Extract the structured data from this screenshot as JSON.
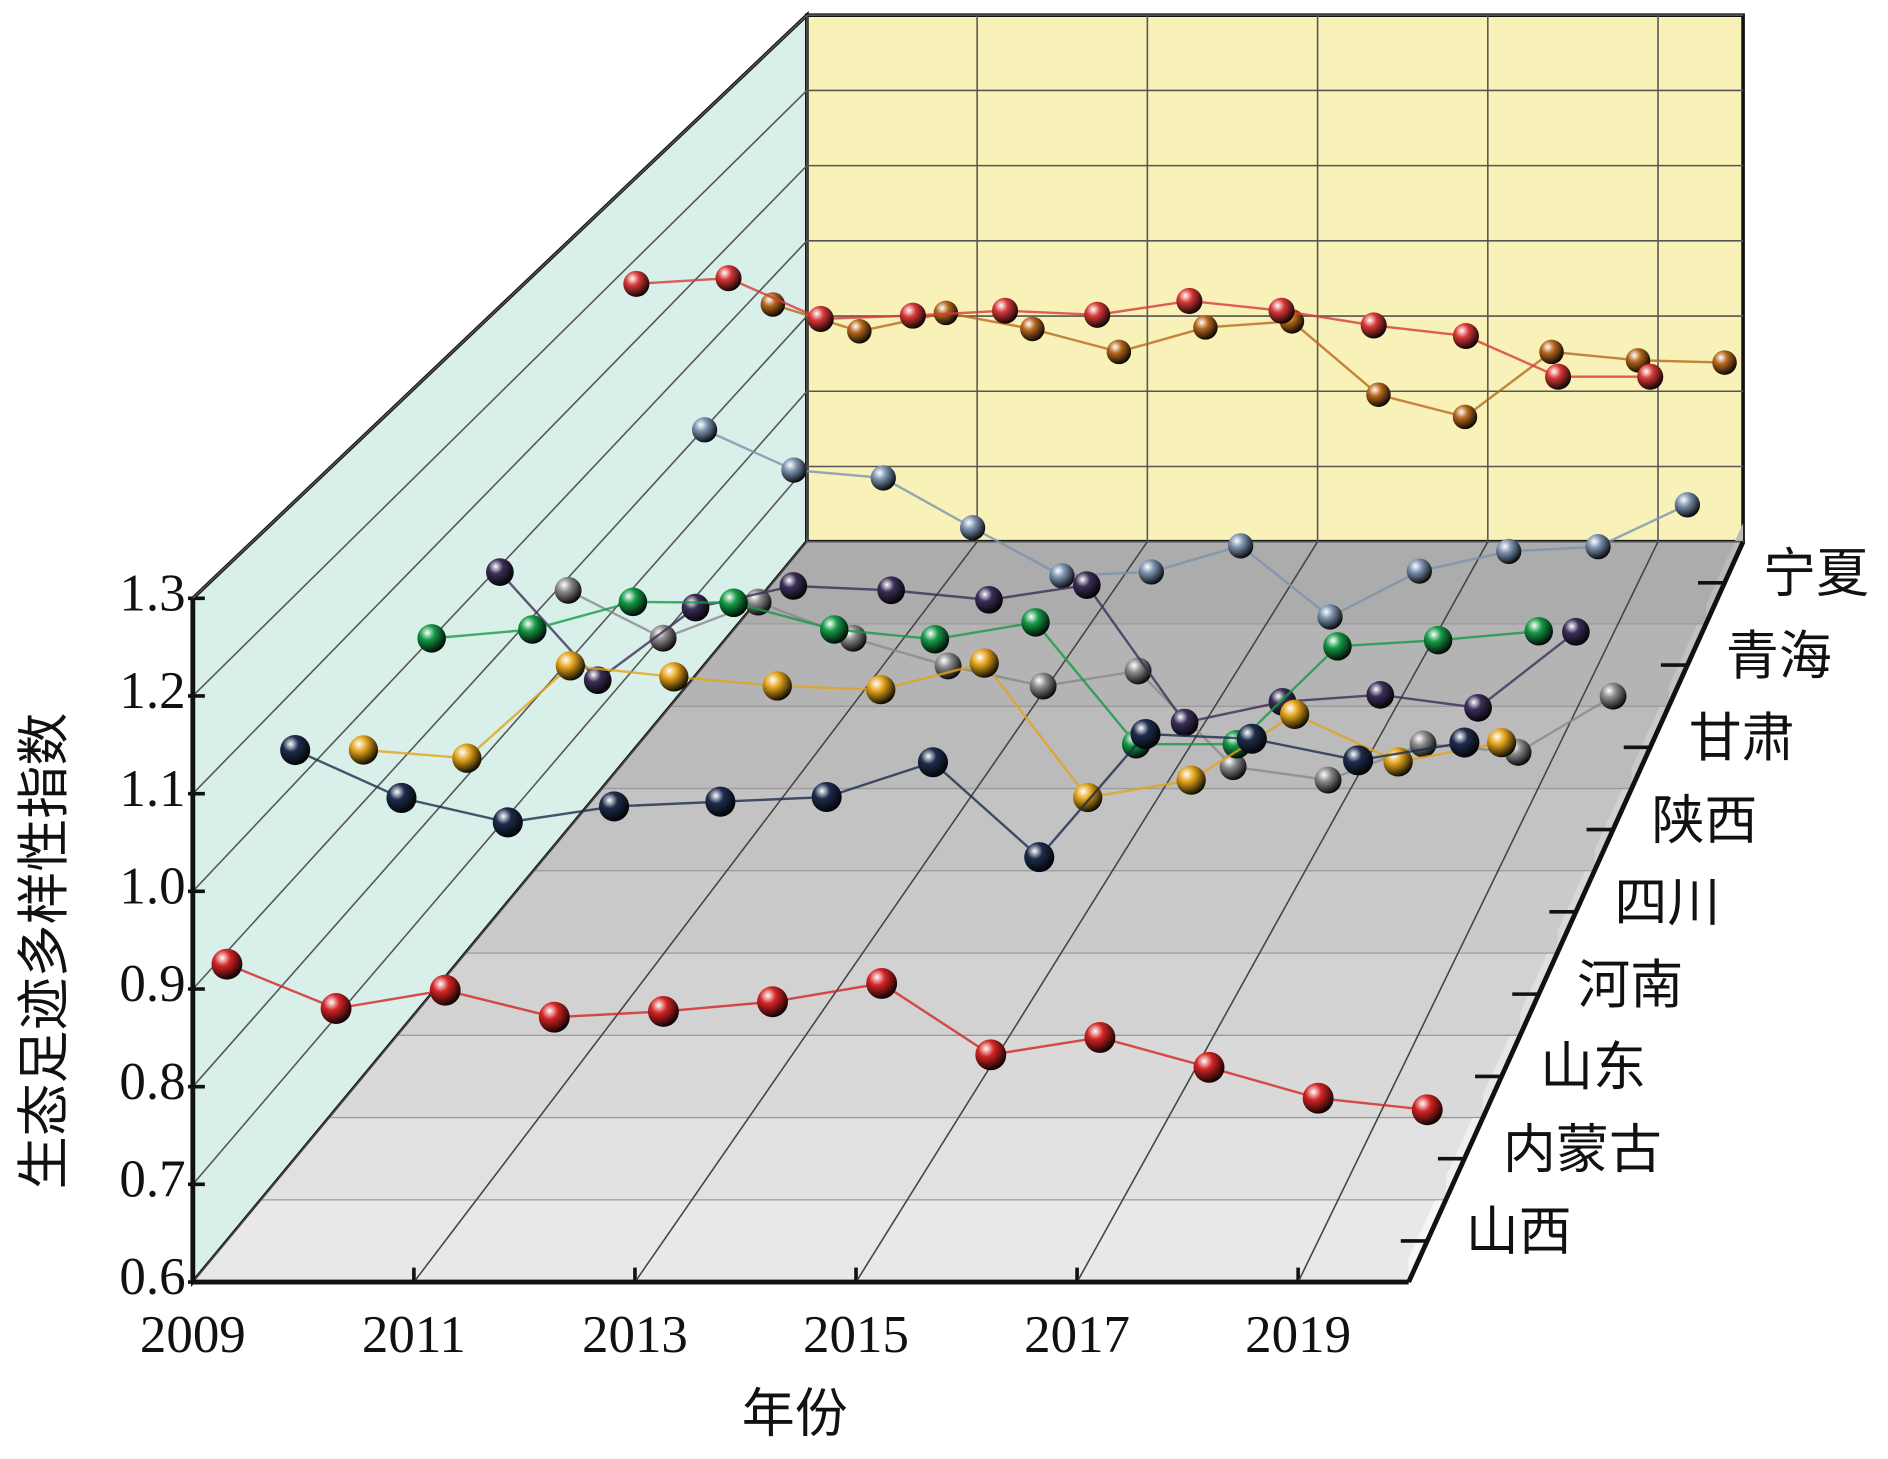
{
  "chart_data": {
    "type": "line3d",
    "xlabel": "年份",
    "ylabel": "生态足迹多样性指数",
    "x": [
      2009,
      2010,
      2011,
      2012,
      2013,
      2014,
      2015,
      2016,
      2017,
      2018,
      2019,
      2020
    ],
    "xlim": [
      2009,
      2020
    ],
    "xticks": [
      2009,
      2011,
      2013,
      2015,
      2017,
      2019
    ],
    "ylim": [
      0.6,
      1.3
    ],
    "yticks": [
      0.6,
      0.7,
      0.8,
      0.9,
      {
        "value": 1.0,
        "label": "1.0"
      },
      1.1,
      1.2,
      1.3
    ],
    "grid": true,
    "series": [
      {
        "name": "山西",
        "color": "#d42424",
        "values": [
          0.887,
          0.841,
          0.86,
          0.832,
          0.838,
          0.848,
          0.867,
          0.793,
          0.811,
          0.78,
          0.748,
          0.736
        ]
      },
      {
        "name": "内蒙古",
        "color": "#1e2c4c",
        "values": [
          1.035,
          0.984,
          0.958,
          0.975,
          0.98,
          0.985,
          1.022,
          0.921,
          1.052,
          1.047,
          1.024,
          1.043
        ]
      },
      {
        "name": "山东",
        "color": "#e3a31c",
        "values": [
          0.957,
          0.948,
          1.049,
          1.037,
          1.027,
          1.023,
          1.052,
          0.905,
          0.924,
          0.996,
          0.944,
          0.965
        ]
      },
      {
        "name": "河南",
        "color": "#169a46",
        "values": [
          1.0,
          1.01,
          1.041,
          1.04,
          1.01,
          0.999,
          1.018,
          0.881,
          0.881,
          0.991,
          0.998,
          1.008
        ]
      },
      {
        "name": "四川",
        "color": "#3c2e58",
        "values": [
          0.993,
          0.868,
          0.952,
          0.977,
          0.972,
          0.961,
          0.978,
          0.819,
          0.843,
          0.851,
          0.836,
          0.924
        ]
      },
      {
        "name": "陕西",
        "color": "#8a8a8a",
        "values": [
          0.885,
          0.828,
          0.871,
          0.828,
          0.795,
          0.771,
          0.789,
          0.675,
          0.659,
          0.702,
          0.692,
          0.759
        ]
      },
      {
        "name": "甘肃",
        "color": "#d83838",
        "values": [
          1.169,
          1.176,
          1.126,
          1.13,
          1.136,
          1.131,
          1.148,
          1.136,
          1.118,
          1.105,
          1.055,
          1.055
        ]
      },
      {
        "name": "青海",
        "color": "#7b92ae",
        "values": [
          0.898,
          0.847,
          0.837,
          0.774,
          0.713,
          0.718,
          0.751,
          0.661,
          0.719,
          0.744,
          0.75,
          0.803
        ]
      },
      {
        "name": "宁夏",
        "color": "#b5681e",
        "values": [
          0.964,
          0.929,
          0.953,
          0.932,
          0.902,
          0.934,
          0.942,
          0.846,
          0.817,
          0.902,
          0.891,
          0.888
        ]
      }
    ]
  }
}
